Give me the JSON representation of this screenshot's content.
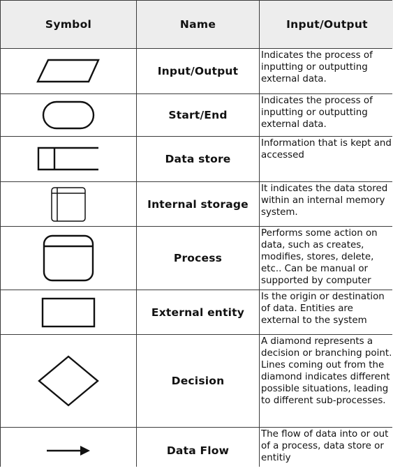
{
  "headers": [
    "Symbol",
    "Name",
    "Input/Output"
  ],
  "rows": [
    {
      "icon": "parallelogram-icon",
      "name": "Input/Output",
      "desc": "Indicates the process of inputting or outputting external data."
    },
    {
      "icon": "rounded-rectangle-icon",
      "name": "Start/End",
      "desc": "Indicates the process of inputting or outputting external data."
    },
    {
      "icon": "open-rectangle-icon",
      "name": "Data store",
      "desc": "Information that is kept and accessed"
    },
    {
      "icon": "internal-storage-icon",
      "name": "Internal storage",
      "desc": "It indicates the data stored within an internal memory system."
    },
    {
      "icon": "process-box-icon",
      "name": "Process",
      "desc": "Performs some action on data, such as creates, modifies, stores, delete, etc.. Can be manual or supported by computer"
    },
    {
      "icon": "rectangle-icon",
      "name": "External entity",
      "desc": "Is the origin or destination of data. Entities are external to the system"
    },
    {
      "icon": "diamond-icon",
      "name": "Decision",
      "desc": "A diamond represents a decision or branching point. Lines coming out from the diamond indicates different possible situations, leading to different sub-processes."
    },
    {
      "icon": "arrow-right-icon",
      "name": "Data Flow",
      "desc": "The flow of data into or out of a process, data store or entitiy"
    }
  ]
}
